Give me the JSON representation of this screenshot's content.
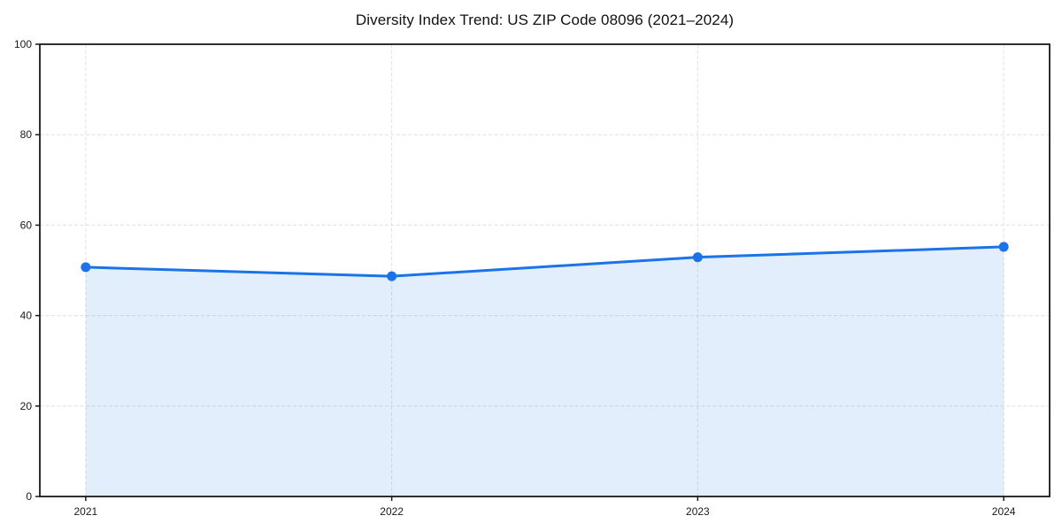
{
  "figure": {
    "background_color": "#ffffff"
  },
  "chart_data": {
    "type": "area",
    "title": "Diversity Index Trend: US ZIP Code 08096 (2021–2024)",
    "categories": [
      "2021",
      "2022",
      "2023",
      "2024"
    ],
    "x": [
      2021,
      2022,
      2023,
      2024
    ],
    "values": [
      50.7,
      48.7,
      52.9,
      55.2
    ],
    "xlabel": "",
    "ylabel": "",
    "ylim": [
      0,
      100
    ],
    "yticks": [
      0,
      20,
      40,
      60,
      80,
      100
    ],
    "grid": true,
    "grid_style": "dashed",
    "legend_position": "none",
    "line_color": "#1a73e8",
    "marker_color": "#1a73e8",
    "fill_color": "rgba(26,115,232,0.12)",
    "grid_color": "#e0e0e0",
    "spine_color": "#1a1a1a",
    "tick_label_color": "#1a1a1a"
  }
}
